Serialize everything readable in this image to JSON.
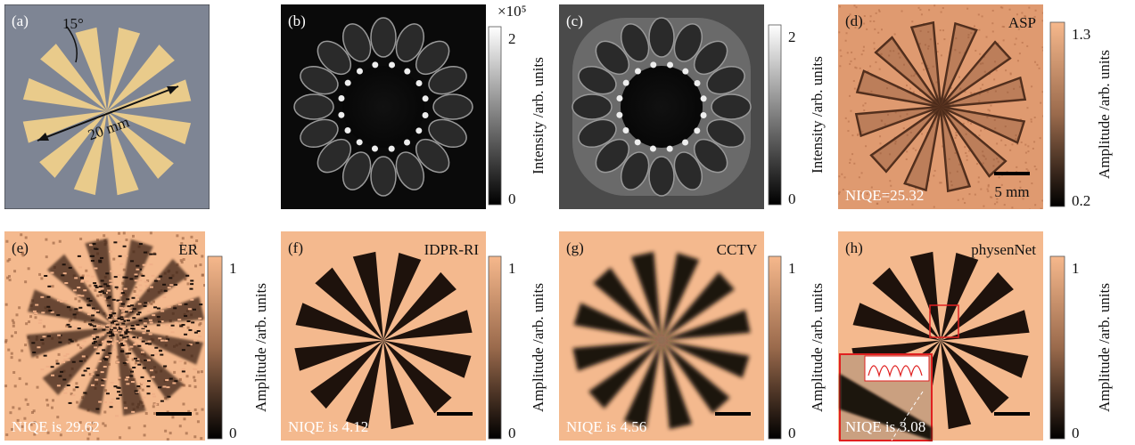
{
  "panels": [
    {
      "label": "(a)",
      "angle": "15°",
      "diameter": "20 mm"
    },
    {
      "label": "(b)",
      "colorbar": {
        "multiplier": "×10⁵",
        "ticks": [
          "2",
          "0"
        ],
        "label": "Intensity /arb. units"
      }
    },
    {
      "label": "(c)",
      "colorbar": {
        "ticks": [
          "2",
          "0"
        ],
        "label": "Intensity /arb. units"
      }
    },
    {
      "label": "(d)",
      "method": "ASP",
      "niqe": "NIQE=25.32",
      "scale_bar": "5 mm",
      "colorbar": {
        "ticks": [
          "1.3",
          "0.2"
        ],
        "label": "Amplitude /arb. units"
      }
    },
    {
      "label": "(e)",
      "method": "ER",
      "niqe": "NIQE is 29.62",
      "colorbar": {
        "ticks": [
          "1",
          "0"
        ],
        "label": "Amplitude /arb. units"
      }
    },
    {
      "label": "(f)",
      "method": "IDPR-RI",
      "niqe": "NIQE is 4.12",
      "colorbar": {
        "ticks": [
          "1",
          "0"
        ],
        "label": "Amplitude /arb. units"
      }
    },
    {
      "label": "(g)",
      "method": "CCTV",
      "niqe": "NIQE is 4.56",
      "colorbar": {
        "ticks": [
          "1",
          "0"
        ],
        "label": "Amplitude /arb. units"
      }
    },
    {
      "label": "(h)",
      "method": "physenNet",
      "niqe": "NIQE is 3.08",
      "colorbar": {
        "ticks": [
          "1",
          "0"
        ],
        "label": "Amplitude /arb. units"
      }
    }
  ]
}
